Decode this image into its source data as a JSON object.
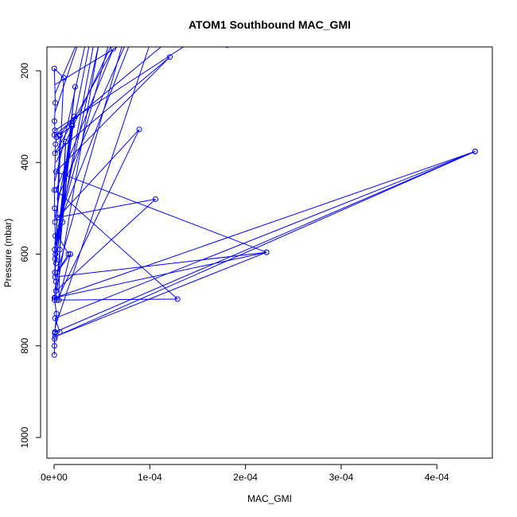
{
  "chart_data": {
    "type": "line",
    "title": "ATOM1 Southbound MAC_GMI",
    "xlabel": "MAC_GMI",
    "ylabel": "Pressure (mbar)",
    "xlim": [
      -7.5e-06,
      0.000458
    ],
    "ylim": [
      1045,
      148
    ],
    "y_reversed": true,
    "grid": false,
    "legend": "none",
    "x_ticks": [
      0,
      0.0001,
      0.0002,
      0.0003,
      0.0004
    ],
    "x_tick_labels": [
      "0e+00",
      "1e-04",
      "2e-04",
      "3e-04",
      "4e-04"
    ],
    "y_ticks": [
      200,
      400,
      600,
      800,
      1000
    ],
    "y_tick_labels": [
      "200",
      "400",
      "600",
      "800",
      "1000"
    ],
    "series": [
      {
        "color": "#0000ff",
        "marker": "open-circle",
        "line": true,
        "points": [
          [
            2e-07,
            820
          ],
          [
            4e-07,
            800
          ],
          [
            6e-07,
            785
          ],
          [
            1e-06,
            770
          ],
          [
            7e-07,
            772
          ],
          [
            2.5e-06,
            730
          ],
          [
            5e-07,
            700
          ],
          [
            4e-07,
            695
          ],
          [
            1.8e-06,
            660
          ],
          [
            8e-07,
            640
          ],
          [
            1e-06,
            610
          ],
          [
            6e-07,
            590
          ],
          [
            1.2e-06,
            560
          ],
          [
            8e-07,
            530
          ],
          [
            6e-07,
            500
          ],
          [
            2e-07,
            460
          ],
          [
            1.5e-06,
            360
          ],
          [
            2.5e-06,
            345
          ],
          [
            3.5e-07,
            340
          ],
          [
            8e-07,
            330
          ],
          [
            4e-07,
            310
          ],
          [
            1.2e-06,
            270
          ],
          [
            2e-07,
            195
          ],
          [
            1e-05,
            215
          ],
          [
            1.5e-06,
            600
          ],
          [
            2.2e-05,
            235
          ],
          [
            2e-06,
            620
          ],
          [
            2.1e-05,
            300
          ],
          [
            6e-06,
            340
          ],
          [
            1.9e-05,
            320
          ],
          [
            4e-06,
            560
          ],
          [
            1.5e-05,
            600
          ],
          [
            3e-06,
            640
          ],
          [
            1.7e-05,
            600
          ],
          [
            5e-06,
            700
          ],
          [
            6e-06,
            590
          ],
          [
            1.2e-05,
            355
          ],
          [
            9e-06,
            530
          ],
          [
            1.8e-05,
            320
          ],
          [
            2e-06,
            680
          ],
          [
            0.000106,
            480
          ],
          [
            4e-06,
            520
          ],
          [
            8.9e-05,
            328
          ],
          [
            3e-06,
            700
          ],
          [
            0.000129,
            698
          ],
          [
            2e-06,
            460
          ],
          [
            6.2e-05,
            152
          ],
          [
            1e-06,
            380
          ],
          [
            0.000121,
            170
          ],
          [
            2e-06,
            420
          ],
          [
            0.000222,
            596
          ],
          [
            1e-06,
            780
          ],
          [
            0.00044,
            376
          ],
          [
            1e-06,
            770
          ],
          [
            6e-06,
            770
          ],
          [
            1e-06,
            740
          ],
          [
            0.00044,
            376
          ],
          [
            1e-06,
            695
          ],
          [
            0.000222,
            596
          ],
          [
            1e-06,
            650
          ],
          [
            6e-06,
            342
          ]
        ]
      }
    ],
    "offscreen_segments": [
      [
        1e-06,
        700,
        5e-05,
        100
      ],
      [
        2e-06,
        650,
        8e-05,
        80
      ],
      [
        1e-06,
        600,
        4.5e-05,
        100
      ],
      [
        2e-06,
        560,
        6e-05,
        120
      ],
      [
        1e-06,
        520,
        4e-05,
        110
      ],
      [
        3e-06,
        480,
        9e-05,
        70
      ],
      [
        1e-06,
        440,
        3.5e-05,
        120
      ],
      [
        2e-06,
        400,
        7e-05,
        100
      ],
      [
        1e-06,
        330,
        0.0002,
        60
      ],
      [
        1e-06,
        290,
        3e-05,
        110
      ],
      [
        1e-06,
        250,
        2.8e-05,
        120
      ],
      [
        1e-06,
        230,
        0.00012,
        80
      ],
      [
        1e-06,
        340,
        0.000145,
        90
      ],
      [
        0.00018,
        150,
        0.0002,
        130
      ],
      [
        1e-06,
        760,
        0.00011,
        80
      ],
      [
        4e-06,
        540,
        8.5e-05,
        110
      ],
      [
        1e-06,
        580,
        5e-05,
        110
      ]
    ]
  }
}
